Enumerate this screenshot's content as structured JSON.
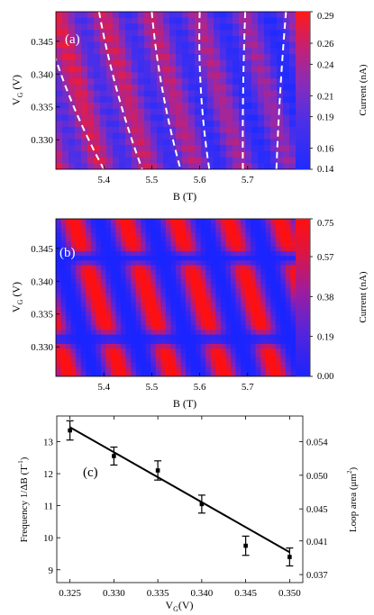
{
  "chart_data": [
    {
      "type": "heatmap",
      "panel_label": "(a)",
      "xlabel": "B (T)",
      "ylabel_main": "V",
      "ylabel_sub": "G",
      "ylabel_unit": " (V)",
      "xlim": [
        5.3,
        5.8
      ],
      "ylim": [
        0.3255,
        0.3495
      ],
      "xticks": [
        5.4,
        5.5,
        5.6,
        5.7
      ],
      "xtick_labels": [
        "5.4",
        "5.5",
        "5.6",
        "5.7"
      ],
      "yticks": [
        0.33,
        0.335,
        0.34,
        0.345
      ],
      "ytick_labels": [
        "0.330",
        "0.335",
        "0.340",
        "0.345"
      ],
      "colorbar_label": "Current (nA)",
      "colorbar_ticks": [
        0.29,
        0.26,
        0.24,
        0.21,
        0.19,
        0.16,
        0.14
      ],
      "colorbar_labels": [
        "0.29",
        "0.26",
        "0.24",
        "0.21",
        "0.19",
        "0.16",
        "0.14"
      ],
      "zlim": [
        0.14,
        0.29
      ],
      "dashed_lines": [
        {
          "top": [
            5.29,
            0.3445
          ],
          "bottom": [
            5.4,
            0.3255
          ]
        },
        {
          "top": [
            5.39,
            0.3495
          ],
          "bottom": [
            5.48,
            0.3255
          ]
        },
        {
          "top": [
            5.5,
            0.3495
          ],
          "bottom": [
            5.56,
            0.3255
          ]
        },
        {
          "top": [
            5.6,
            0.3495
          ],
          "bottom": [
            5.62,
            0.3255
          ]
        },
        {
          "top": [
            5.695,
            0.3495
          ],
          "bottom": [
            5.69,
            0.3255
          ]
        },
        {
          "top": [
            5.78,
            0.3495
          ],
          "bottom": [
            5.76,
            0.3255
          ]
        }
      ]
    },
    {
      "type": "heatmap",
      "panel_label": "(b)",
      "xlabel": "B (T)",
      "ylabel_main": "V",
      "ylabel_sub": "G",
      "ylabel_unit": " (V)",
      "xlim": [
        5.3,
        5.8
      ],
      "ylim": [
        0.3255,
        0.3495
      ],
      "xticks": [
        5.4,
        5.5,
        5.6,
        5.7
      ],
      "xtick_labels": [
        "5.4",
        "5.5",
        "5.6",
        "5.7"
      ],
      "yticks": [
        0.33,
        0.335,
        0.34,
        0.345
      ],
      "ytick_labels": [
        "0.330",
        "0.335",
        "0.340",
        "0.345"
      ],
      "colorbar_label": "Current (nA)",
      "colorbar_ticks": [
        0.75,
        0.57,
        0.38,
        0.19,
        0.0
      ],
      "colorbar_labels": [
        "0.75",
        "0.57",
        "0.38",
        "0.19",
        "0.00"
      ],
      "zlim": [
        0.0,
        0.75
      ]
    },
    {
      "type": "scatter",
      "panel_label": "(c)",
      "xlabel_main": "V",
      "xlabel_sub": "G",
      "xlabel_unit": "(V)",
      "ylabel": "Frequency 1/ΔB (T",
      "ylabel_sup": "-1",
      "ylabel_close": ")",
      "y2label": "Loop area (μm",
      "y2label_sup": "2",
      "y2label_close": ")",
      "xlim": [
        0.3235,
        0.3515
      ],
      "ylim": [
        8.6,
        13.8
      ],
      "xticks": [
        0.325,
        0.33,
        0.335,
        0.34,
        0.345,
        0.35
      ],
      "xtick_labels": [
        "0.325",
        "0.330",
        "0.335",
        "0.340",
        "0.345",
        "0.350"
      ],
      "yticks": [
        9,
        10,
        11,
        12,
        13
      ],
      "ytick_labels": [
        "9",
        "10",
        "11",
        "12",
        "13"
      ],
      "y2ticks": [
        {
          "value": 13.0,
          "label": "0.054"
        },
        {
          "value": 11.95,
          "label": "0.050"
        },
        {
          "value": 10.9,
          "label": "0.045"
        },
        {
          "value": 9.9,
          "label": "0.041"
        },
        {
          "value": 8.85,
          "label": "0.037"
        }
      ],
      "points": [
        {
          "x": 0.325,
          "y": 13.35,
          "err": 0.3
        },
        {
          "x": 0.33,
          "y": 12.55,
          "err": 0.28
        },
        {
          "x": 0.335,
          "y": 12.1,
          "err": 0.3
        },
        {
          "x": 0.34,
          "y": 11.05,
          "err": 0.28
        },
        {
          "x": 0.345,
          "y": 9.75,
          "err": 0.3
        },
        {
          "x": 0.35,
          "y": 9.4,
          "err": 0.28
        }
      ],
      "fit_line": [
        [
          0.325,
          13.45
        ],
        [
          0.35,
          9.55
        ]
      ]
    }
  ]
}
